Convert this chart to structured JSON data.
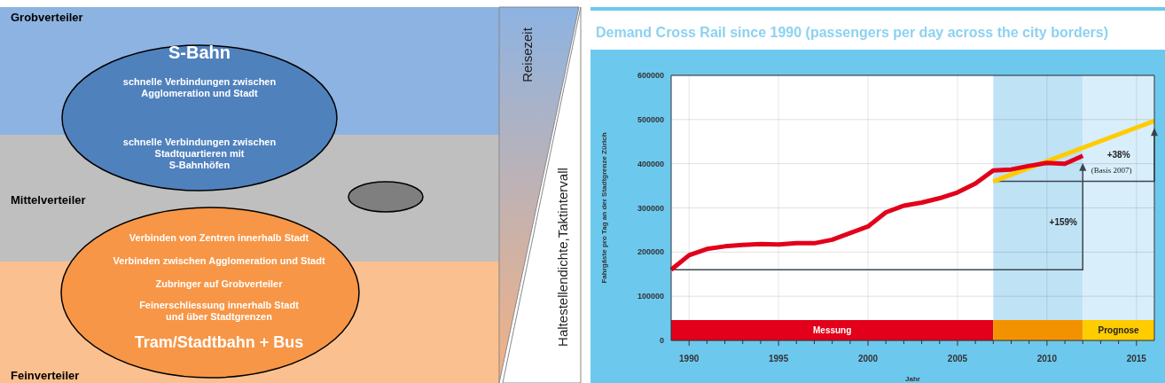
{
  "chart_data": [
    {
      "type": "other",
      "annotations": [
        "Grobverteiler",
        "S-Bahn",
        "schnelle Verbindungen zwischen Agglomeration und Stadt",
        "schnelle Verbindungen zwischen Stadtquartieren mit S-Bahnhöfen",
        "Mittelverteiler",
        "Verbinden von Zentren innerhalb Stadt",
        "Verbinden zwischen Agglomeration und Stadt",
        "Zubringer auf Grobverteiler",
        "Feinerschliessung innerhalb Stadt und über Stadtgrenzen",
        "Tram/Stadtbahn + Bus",
        "Feinverteiler"
      ]
    },
    {
      "type": "other",
      "annotations": [
        "Reisezeit",
        "Haltestellendichte,Taktintervall"
      ]
    },
    {
      "type": "line",
      "title": "Demand Cross Rail since 1990 (passengers per day across the city borders)",
      "xlabel": "Jahr",
      "ylabel": "Fahrgäste pro Tag an der Stadtgrenze Zürich",
      "xlim": [
        1989,
        2016
      ],
      "ylim": [
        0,
        600000
      ],
      "xticks": [
        1990,
        {
          "value": 1991,
          "label": null
        },
        {
          "value": 1992,
          "label": null
        },
        {
          "value": 1993,
          "label": null
        },
        {
          "value": 1994,
          "label": null
        },
        1995,
        {
          "value": 1996,
          "label": null
        },
        {
          "value": 1997,
          "label": null
        },
        {
          "value": 1998,
          "label": null
        },
        {
          "value": 1999,
          "label": null
        },
        2000,
        {
          "value": 2001,
          "label": null
        },
        {
          "value": 2002,
          "label": null
        },
        {
          "value": 2003,
          "label": null
        },
        {
          "value": 2004,
          "label": null
        },
        2005,
        {
          "value": 2006,
          "label": null
        },
        {
          "value": 2007,
          "label": null
        },
        {
          "value": 2008,
          "label": null
        },
        {
          "value": 2009,
          "label": null
        },
        2010,
        {
          "value": 2011,
          "label": null
        },
        {
          "value": 2012,
          "label": null
        },
        {
          "value": 2013,
          "label": null
        },
        {
          "value": 2014,
          "label": null
        },
        2015
      ],
      "yticks": [
        0,
        100000,
        200000,
        300000,
        400000,
        500000,
        600000
      ],
      "grid": true,
      "bands": [
        {
          "axis": "x",
          "from": 2007,
          "to": 2012,
          "color": "#bfe2f5"
        },
        {
          "axis": "x",
          "from": 2012,
          "to": 2016,
          "color": "#d8eefa"
        },
        {
          "axis": "x",
          "from": 1989,
          "to": 2007,
          "label": "Messung",
          "color": "#e2001a"
        },
        {
          "axis": "x",
          "from": 2007,
          "to": 2012,
          "label": null,
          "color": "#f39200"
        },
        {
          "axis": "x",
          "from": 2012,
          "to": 2016,
          "label": "Prognose",
          "color": "#ffcc00"
        }
      ],
      "series": [
        {
          "color": "#ffcc00",
          "x": [
            2007,
            2016
          ],
          "values": [
            360000,
            497000
          ]
        },
        {
          "color": "#e2001a",
          "x": [
            1989,
            1990,
            1991,
            1992,
            1993,
            1994,
            1995,
            1996,
            1997,
            1998,
            1999,
            2000,
            2001,
            2002,
            2003,
            2004,
            2005,
            2006,
            2007,
            2008,
            2009,
            2010,
            2011,
            2012
          ],
          "values": [
            160000,
            193000,
            207000,
            213000,
            216000,
            218000,
            217000,
            220000,
            220000,
            228000,
            243000,
            258000,
            290000,
            305000,
            312000,
            322000,
            335000,
            355000,
            385000,
            387000,
            395000,
            402000,
            400000,
            418000
          ]
        }
      ],
      "annotations": [
        "+159%",
        "+38%",
        "(Basis 2007)"
      ]
    }
  ]
}
